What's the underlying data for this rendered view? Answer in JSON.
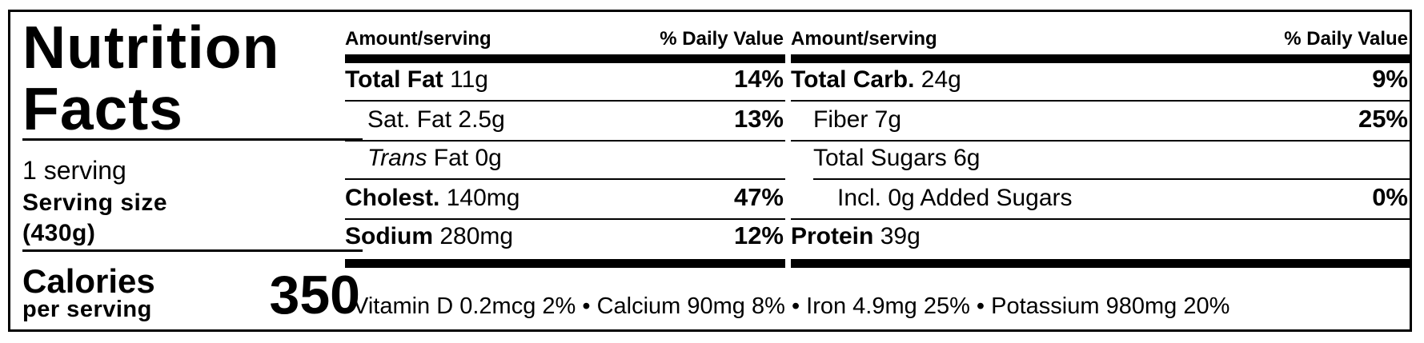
{
  "title_line1": "Nutrition",
  "title_line2": "Facts",
  "servings": "1 serving",
  "serving_size_label": "Serving size",
  "serving_size_value": "(430g)",
  "calories_label": "Calories",
  "calories_per": "per serving",
  "calories_value": "350",
  "left_table": {
    "header_amount": "Amount/serving",
    "header_dv": "% Daily Value",
    "total_fat": {
      "name": "Total Fat",
      "amount": "11g",
      "dv": "14%"
    },
    "sat_fat": {
      "label": "Sat. Fat 2.5g",
      "dv": "13%"
    },
    "trans_fat": {
      "italic": "Trans",
      "rest": " Fat 0g"
    },
    "cholest": {
      "name": "Cholest.",
      "amount": "140mg",
      "dv": "47%"
    },
    "sodium": {
      "name": "Sodium",
      "amount": "280mg",
      "dv": "12%"
    }
  },
  "right_table": {
    "header_amount": "Amount/serving",
    "header_dv": "% Daily Value",
    "total_carb": {
      "name": "Total Carb.",
      "amount": "24g",
      "dv": "9%"
    },
    "fiber": {
      "label": "Fiber 7g",
      "dv": "25%"
    },
    "total_sugars": {
      "label": "Total Sugars 6g"
    },
    "added_sugars": {
      "label": "Incl. 0g Added Sugars",
      "dv": "0%"
    },
    "protein": {
      "name": "Protein",
      "amount": "39g"
    }
  },
  "vitamins_line": "Vitamin D 0.2mcg 2% • Calcium 90mg 8% • Iron 4.9mg 25% • Potassium 980mg 20%"
}
